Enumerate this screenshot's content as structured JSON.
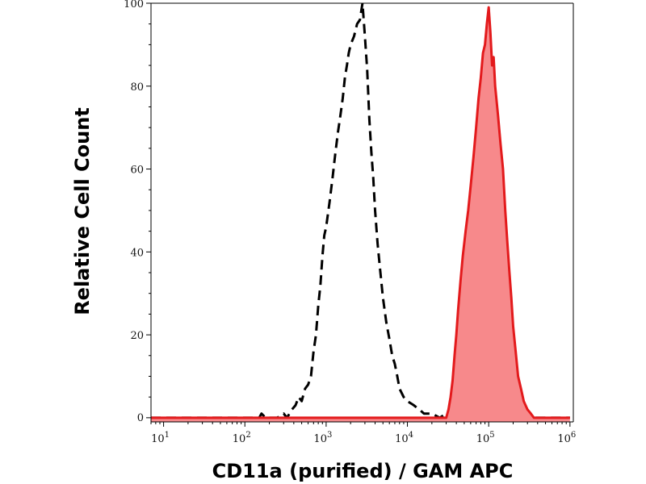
{
  "chart_data": {
    "type": "area",
    "xlabel": "CD11a (purified) / GAM APC",
    "ylabel": "Relative Cell Count",
    "x_scale": "log",
    "xlim": [
      7,
      1100000
    ],
    "ylim": [
      -1,
      100
    ],
    "x_ticks": [
      {
        "value": 10,
        "base": "10",
        "exp": "1"
      },
      {
        "value": 100,
        "base": "10",
        "exp": "2"
      },
      {
        "value": 1000,
        "base": "10",
        "exp": "3"
      },
      {
        "value": 10000,
        "base": "10",
        "exp": "4"
      },
      {
        "value": 100000,
        "base": "10",
        "exp": "5"
      },
      {
        "value": 1000000,
        "base": "10",
        "exp": "6"
      }
    ],
    "y_ticks": [
      0,
      20,
      40,
      60,
      80,
      100
    ],
    "grid": false,
    "series": [
      {
        "style": "dashed",
        "color": "#000000",
        "fill": "none",
        "points": [
          [
            7,
            0
          ],
          [
            100,
            0
          ],
          [
            150,
            0
          ],
          [
            160,
            1
          ],
          [
            180,
            0
          ],
          [
            250,
            0
          ],
          [
            300,
            1
          ],
          [
            330,
            0
          ],
          [
            380,
            2
          ],
          [
            420,
            3
          ],
          [
            460,
            5
          ],
          [
            500,
            4
          ],
          [
            550,
            7
          ],
          [
            600,
            8
          ],
          [
            650,
            10
          ],
          [
            700,
            16
          ],
          [
            750,
            20
          ],
          [
            800,
            27
          ],
          [
            850,
            32
          ],
          [
            900,
            39
          ],
          [
            950,
            44
          ],
          [
            1000,
            46
          ],
          [
            1100,
            52
          ],
          [
            1200,
            58
          ],
          [
            1300,
            64
          ],
          [
            1400,
            69
          ],
          [
            1500,
            73
          ],
          [
            1600,
            77
          ],
          [
            1700,
            82
          ],
          [
            1800,
            85
          ],
          [
            1900,
            88
          ],
          [
            2000,
            90
          ],
          [
            2200,
            92
          ],
          [
            2400,
            95
          ],
          [
            2600,
            96
          ],
          [
            2800,
            100
          ],
          [
            3000,
            92
          ],
          [
            3200,
            84
          ],
          [
            3400,
            72
          ],
          [
            3600,
            64
          ],
          [
            3800,
            58
          ],
          [
            4000,
            50
          ],
          [
            4300,
            42
          ],
          [
            4600,
            36
          ],
          [
            5000,
            29
          ],
          [
            5500,
            23
          ],
          [
            6000,
            19
          ],
          [
            6500,
            15
          ],
          [
            7000,
            13
          ],
          [
            7500,
            10
          ],
          [
            8000,
            7
          ],
          [
            9000,
            5
          ],
          [
            10000,
            4
          ],
          [
            12000,
            3
          ],
          [
            14000,
            2
          ],
          [
            16000,
            1
          ],
          [
            20000,
            1
          ],
          [
            25000,
            0
          ],
          [
            30000,
            1
          ],
          [
            35000,
            0
          ],
          [
            45000,
            1
          ],
          [
            60000,
            0
          ],
          [
            90000,
            1
          ],
          [
            120000,
            0
          ],
          [
            1000000,
            0
          ]
        ]
      },
      {
        "style": "solid",
        "color": "#e31a1c",
        "fill": "#f7898b",
        "points": [
          [
            7,
            0
          ],
          [
            25000,
            0
          ],
          [
            30000,
            0
          ],
          [
            32000,
            2
          ],
          [
            34000,
            5
          ],
          [
            36000,
            9
          ],
          [
            38000,
            15
          ],
          [
            40000,
            20
          ],
          [
            42000,
            26
          ],
          [
            45000,
            33
          ],
          [
            48000,
            39
          ],
          [
            52000,
            45
          ],
          [
            56000,
            50
          ],
          [
            60000,
            56
          ],
          [
            65000,
            63
          ],
          [
            70000,
            70
          ],
          [
            75000,
            77
          ],
          [
            80000,
            82
          ],
          [
            85000,
            88
          ],
          [
            90000,
            90
          ],
          [
            95000,
            95
          ],
          [
            100000,
            99
          ],
          [
            105000,
            93
          ],
          [
            110000,
            85
          ],
          [
            115000,
            87
          ],
          [
            120000,
            80
          ],
          [
            130000,
            73
          ],
          [
            140000,
            66
          ],
          [
            150000,
            60
          ],
          [
            160000,
            50
          ],
          [
            170000,
            42
          ],
          [
            180000,
            35
          ],
          [
            190000,
            29
          ],
          [
            200000,
            22
          ],
          [
            215000,
            16
          ],
          [
            230000,
            10
          ],
          [
            250000,
            7
          ],
          [
            270000,
            4
          ],
          [
            300000,
            2
          ],
          [
            330000,
            1
          ],
          [
            360000,
            0
          ],
          [
            1000000,
            0
          ]
        ]
      }
    ]
  }
}
